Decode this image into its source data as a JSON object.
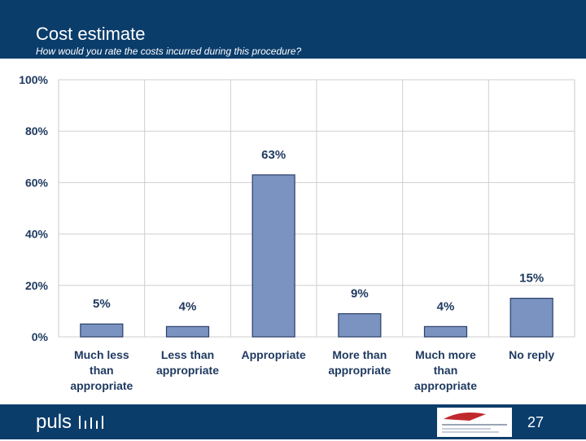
{
  "header": {
    "title": "Cost estimate",
    "subtitle": "How would you rate the costs incurred during this procedure?"
  },
  "footer": {
    "brand": "puls",
    "page_number": "27"
  },
  "colors": {
    "header_bg": "#0b3d6b",
    "bar_fill": "#7b93c0",
    "bar_stroke": "#2a3f6a"
  },
  "chart_data": {
    "type": "bar",
    "title": "",
    "xlabel": "",
    "ylabel": "",
    "categories": [
      [
        "Much less",
        "than",
        "appropriate"
      ],
      [
        "Less than",
        "appropriate"
      ],
      [
        "Appropriate"
      ],
      [
        "More than",
        "appropriate"
      ],
      [
        "Much more",
        "than",
        "appropriate"
      ],
      [
        "No reply"
      ]
    ],
    "values": [
      5,
      4,
      63,
      9,
      4,
      15
    ],
    "data_labels": [
      "5%",
      "4%",
      "63%",
      "9%",
      "4%",
      "15%"
    ],
    "ylim": [
      0,
      100
    ],
    "yticks": [
      0,
      20,
      40,
      60,
      80,
      100
    ],
    "ytick_labels": [
      "0%",
      "20%",
      "40%",
      "60%",
      "80%",
      "100%"
    ],
    "grid": true,
    "legend": "none"
  }
}
